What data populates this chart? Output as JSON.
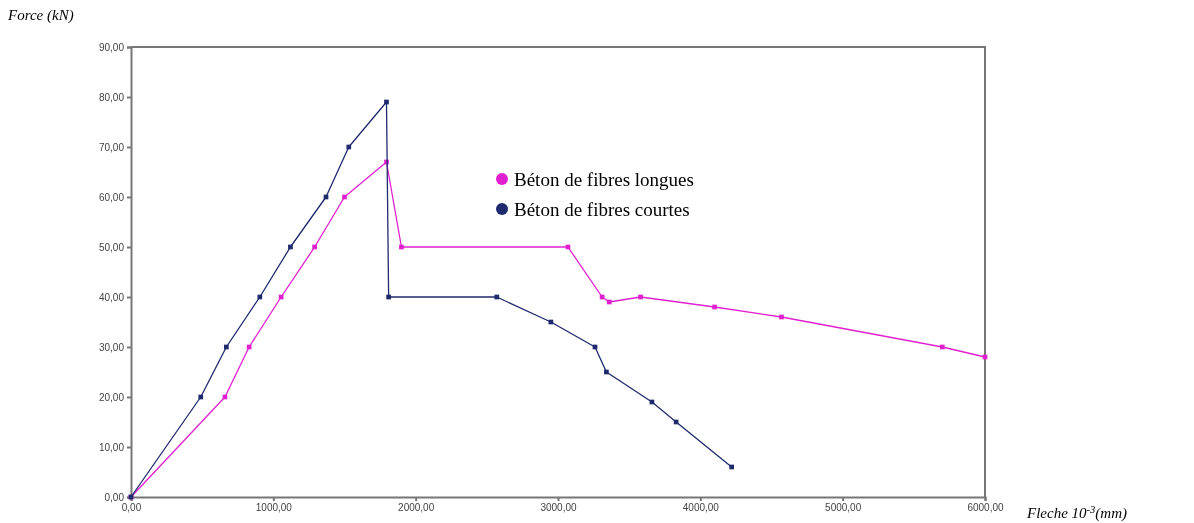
{
  "chart_data": {
    "type": "line",
    "xlabel": "Fleche 10$^{-3}$(mm)",
    "ylabel": "Force (kN)",
    "xlim": [
      0,
      6000
    ],
    "ylim": [
      0,
      90
    ],
    "xticks": [
      {
        "value": 0,
        "label": "0,00"
      },
      {
        "value": 1000,
        "label": "1000,00"
      },
      {
        "value": 2000,
        "label": "2000,00"
      },
      {
        "value": 3000,
        "label": "3000,00"
      },
      {
        "value": 4000,
        "label": "4000,00"
      },
      {
        "value": 5000,
        "label": "5000,00"
      },
      {
        "value": 6000,
        "label": "6000,00"
      }
    ],
    "yticks": [
      {
        "value": 0,
        "label": "0,00"
      },
      {
        "value": 10,
        "label": "10,00"
      },
      {
        "value": 20,
        "label": "20,00"
      },
      {
        "value": 30,
        "label": "30,00"
      },
      {
        "value": 40,
        "label": "40,00"
      },
      {
        "value": 50,
        "label": "50,00"
      },
      {
        "value": 60,
        "label": "60,00"
      },
      {
        "value": 70,
        "label": "70,00"
      },
      {
        "value": 80,
        "label": "80,00"
      },
      {
        "value": 90,
        "label": "90,00"
      }
    ],
    "grid": false,
    "legend": "top right",
    "marker": "square",
    "line_style": "solid",
    "series": [
      {
        "name": "Béton de fibres longues",
        "color": "#e020d0",
        "x": [
          0,
          660,
          830,
          1055,
          1290,
          1500,
          1795,
          1900,
          3070,
          3310,
          3360,
          3580,
          4100,
          4570,
          5700,
          6000
        ],
        "values": [
          0,
          20,
          30,
          40,
          50,
          60,
          67,
          50,
          50,
          40,
          39,
          40,
          38,
          36,
          30,
          28
        ]
      },
      {
        "name": "Béton de fibres courtes",
        "color": "#1f2a6e",
        "x": [
          0,
          490,
          670,
          905,
          1120,
          1370,
          1530,
          1795,
          1810,
          2570,
          2950,
          3260,
          3340,
          3660,
          3830,
          4220
        ],
        "values": [
          0,
          20,
          30,
          40,
          50,
          60,
          70,
          79,
          40,
          40,
          35,
          30,
          25,
          19,
          15,
          6
        ]
      }
    ]
  }
}
